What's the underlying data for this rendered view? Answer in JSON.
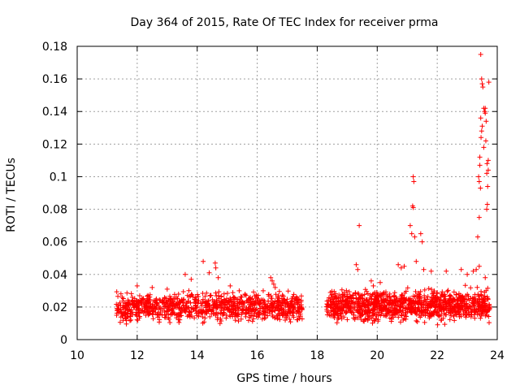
{
  "chart_data": {
    "type": "scatter",
    "title": "Day 364 of 2015, Rate Of TEC Index for receiver prma",
    "xlabel": "GPS time / hours",
    "ylabel": "ROTI / TECUs",
    "xlim": [
      10,
      24
    ],
    "ylim": [
      0,
      0.18
    ],
    "xticks": [
      "10",
      "12",
      "14",
      "16",
      "18",
      "20",
      "22",
      "24"
    ],
    "yticks": [
      "0",
      "0.02",
      "0.04",
      "0.06",
      "0.08",
      "0.1",
      "0.12",
      "0.14",
      "0.16",
      "0.18"
    ],
    "grid": true,
    "marker": "plus",
    "color": "#ff0000",
    "dense_bands": [
      {
        "x_start": 11.3,
        "x_end": 17.5,
        "y_min": 0.008,
        "y_max": 0.032,
        "count": 950
      },
      {
        "x_start": 18.3,
        "x_end": 23.75,
        "y_min": 0.008,
        "y_max": 0.034,
        "count": 1100
      }
    ],
    "series": [
      {
        "name": "ROTI",
        "points": [
          [
            12.0,
            0.033
          ],
          [
            12.5,
            0.032
          ],
          [
            13.0,
            0.031
          ],
          [
            13.6,
            0.04
          ],
          [
            13.8,
            0.037
          ],
          [
            14.2,
            0.048
          ],
          [
            14.4,
            0.041
          ],
          [
            14.6,
            0.047
          ],
          [
            14.62,
            0.044
          ],
          [
            14.7,
            0.038
          ],
          [
            15.1,
            0.033
          ],
          [
            15.4,
            0.03
          ],
          [
            16.45,
            0.038
          ],
          [
            16.5,
            0.036
          ],
          [
            16.55,
            0.034
          ],
          [
            16.6,
            0.032
          ],
          [
            16.2,
            0.03
          ],
          [
            19.3,
            0.046
          ],
          [
            19.35,
            0.043
          ],
          [
            19.4,
            0.07
          ],
          [
            19.8,
            0.036
          ],
          [
            20.1,
            0.035
          ],
          [
            20.7,
            0.046
          ],
          [
            20.8,
            0.044
          ],
          [
            20.9,
            0.045
          ],
          [
            21.1,
            0.07
          ],
          [
            21.15,
            0.065
          ],
          [
            21.2,
            0.1
          ],
          [
            21.22,
            0.097
          ],
          [
            21.18,
            0.082
          ],
          [
            21.2,
            0.081
          ],
          [
            21.25,
            0.063
          ],
          [
            21.3,
            0.048
          ],
          [
            21.45,
            0.065
          ],
          [
            21.5,
            0.06
          ],
          [
            21.55,
            0.043
          ],
          [
            21.8,
            0.042
          ],
          [
            22.3,
            0.042
          ],
          [
            22.8,
            0.043
          ],
          [
            23.0,
            0.04
          ],
          [
            23.35,
            0.063
          ],
          [
            23.4,
            0.075
          ],
          [
            23.42,
            0.112
          ],
          [
            23.45,
            0.175
          ],
          [
            23.48,
            0.16
          ],
          [
            23.5,
            0.157
          ],
          [
            23.52,
            0.155
          ],
          [
            23.55,
            0.142
          ],
          [
            23.58,
            0.14
          ],
          [
            23.6,
            0.139
          ],
          [
            23.62,
            0.122
          ],
          [
            23.63,
            0.134
          ],
          [
            23.65,
            0.102
          ],
          [
            23.66,
            0.108
          ],
          [
            23.68,
            0.094
          ],
          [
            23.7,
            0.11
          ],
          [
            23.72,
            0.158
          ],
          [
            23.45,
            0.136
          ],
          [
            23.5,
            0.131
          ],
          [
            23.48,
            0.128
          ],
          [
            23.42,
            0.107
          ],
          [
            23.38,
            0.1
          ],
          [
            23.4,
            0.097
          ],
          [
            23.44,
            0.093
          ],
          [
            23.65,
            0.08
          ],
          [
            23.67,
            0.083
          ],
          [
            23.6,
            0.142
          ],
          [
            23.55,
            0.118
          ],
          [
            23.46,
            0.124
          ],
          [
            23.7,
            0.104
          ],
          [
            23.4,
            0.045
          ],
          [
            23.3,
            0.043
          ],
          [
            23.2,
            0.042
          ],
          [
            23.6,
            0.038
          ]
        ]
      }
    ]
  }
}
